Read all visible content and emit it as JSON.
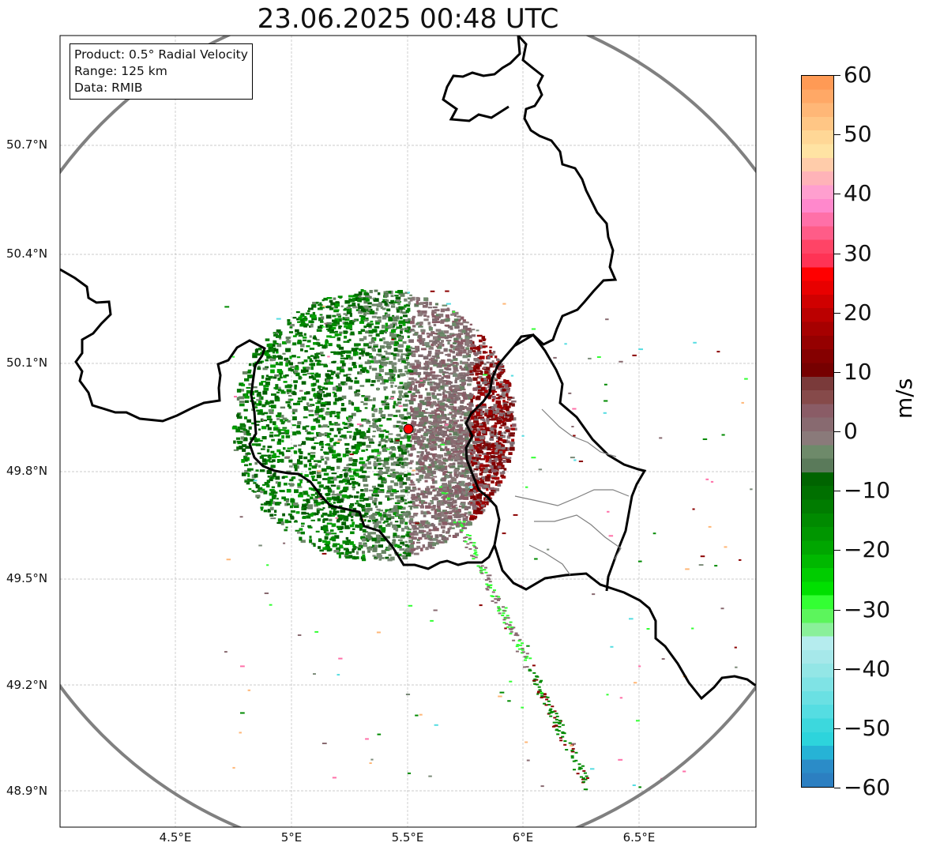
{
  "title": "23.06.2025 00:48 UTC",
  "info": {
    "product": "Product: 0.5° Radial Velocity",
    "range": "Range: 125 km",
    "data": "Data: RMIB"
  },
  "map": {
    "lat_ticks": [
      "50.7°N",
      "50.4°N",
      "50.1°N",
      "49.8°N",
      "49.5°N",
      "49.2°N",
      "48.9°N"
    ],
    "lon_ticks": [
      "4.5°E",
      "5°E",
      "5.5°E",
      "6°E",
      "6.5°E"
    ],
    "radar_site": {
      "lat": 49.914,
      "lon": 5.506
    },
    "range_ring_color": "#808080",
    "border_color": "#000000",
    "region_border_color": "#808080",
    "grid_color": "#bbbbbb"
  },
  "colorbar": {
    "unit": "m/s",
    "ticks": [
      "60",
      "50",
      "40",
      "30",
      "20",
      "10",
      "0",
      "−10",
      "−20",
      "−30",
      "−40",
      "−50",
      "−60"
    ],
    "colors_top_to_bottom": [
      "#ff9a55",
      "#ffa866",
      "#ffb777",
      "#ffc685",
      "#ffd796",
      "#ffe3a3",
      "#ffccaa",
      "#ffb3b8",
      "#ff9fcf",
      "#ff88cc",
      "#ff70a8",
      "#ff5c88",
      "#ff4466",
      "#ff3355",
      "#ff0000",
      "#e80000",
      "#d00000",
      "#bb0000",
      "#a60000",
      "#950000",
      "#850000",
      "#760000",
      "#7a3a3a",
      "#864a4a",
      "#8a5c66",
      "#886a70",
      "#8a7a7a",
      "#6e8a6a",
      "#5a7a5a",
      "#006400",
      "#007000",
      "#007c00",
      "#008a00",
      "#009600",
      "#00a600",
      "#00b800",
      "#00cc00",
      "#00e000",
      "#33ff33",
      "#5cf55c",
      "#8af09a",
      "#b5ecee",
      "#a6e8ea",
      "#93e6e6",
      "#7fe3e5",
      "#6ae0e3",
      "#55dde2",
      "#3cd8dd",
      "#2dd4dc",
      "#26b3d6",
      "#2b8cc8",
      "#2c7fc1"
    ],
    "velocity_colors": {
      "approaching": "#008000",
      "zero": "#7a8a78",
      "receding": "#8b0000"
    }
  }
}
